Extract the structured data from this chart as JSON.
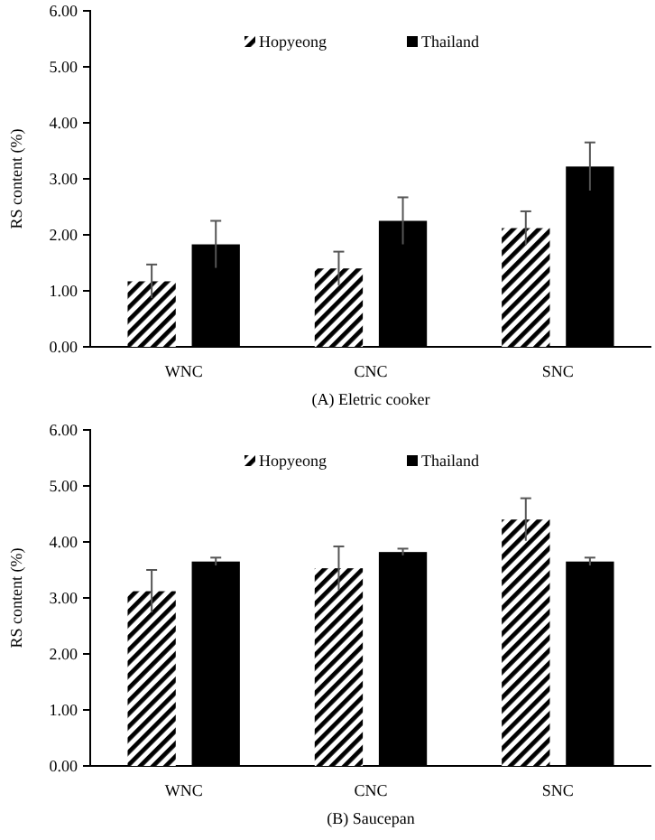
{
  "chart_data": [
    {
      "type": "bar",
      "xlabel": "(A) Eletric cooker",
      "ylabel": "RS content (%)",
      "categories": [
        "WNC",
        "CNC",
        "SNC"
      ],
      "series": [
        {
          "name": "Hopyeong",
          "color": "#000000",
          "values": [
            1.17,
            1.4,
            2.12
          ],
          "errors": [
            0.3,
            0.3,
            0.3
          ]
        },
        {
          "name": "Thailand",
          "color": "#000000",
          "values": [
            1.83,
            2.25,
            3.22
          ],
          "errors": [
            0.42,
            0.42,
            0.43
          ]
        }
      ],
      "ylim": [
        0,
        6
      ],
      "yticks": [
        {
          "value": 0,
          "label": "0.00"
        },
        {
          "value": 1,
          "label": "1.00"
        },
        {
          "value": 2,
          "label": "2.00"
        },
        {
          "value": 3,
          "label": "3.00"
        },
        {
          "value": 4,
          "label": "4.00"
        },
        {
          "value": 5,
          "label": "5.00"
        },
        {
          "value": 6,
          "label": "6.00"
        }
      ],
      "legend": "top",
      "grid": false
    },
    {
      "type": "bar",
      "xlabel": "(B) Saucepan",
      "ylabel": "RS content (%)",
      "categories": [
        "WNC",
        "CNC",
        "SNC"
      ],
      "series": [
        {
          "name": "Hopyeong",
          "color": "#000000",
          "values": [
            3.12,
            3.53,
            4.4
          ],
          "errors": [
            0.38,
            0.39,
            0.38
          ]
        },
        {
          "name": "Thailand",
          "color": "#000000",
          "values": [
            3.65,
            3.82,
            3.65
          ],
          "errors": [
            0.07,
            0.06,
            0.07
          ]
        }
      ],
      "ylim": [
        0,
        6
      ],
      "yticks": [
        {
          "value": 0,
          "label": "0.00"
        },
        {
          "value": 1,
          "label": "1.00"
        },
        {
          "value": 2,
          "label": "2.00"
        },
        {
          "value": 3,
          "label": "3.00"
        },
        {
          "value": 4,
          "label": "4.00"
        },
        {
          "value": 5,
          "label": "5.00"
        },
        {
          "value": 6,
          "label": "6.00"
        }
      ],
      "legend": "top",
      "grid": false
    }
  ]
}
